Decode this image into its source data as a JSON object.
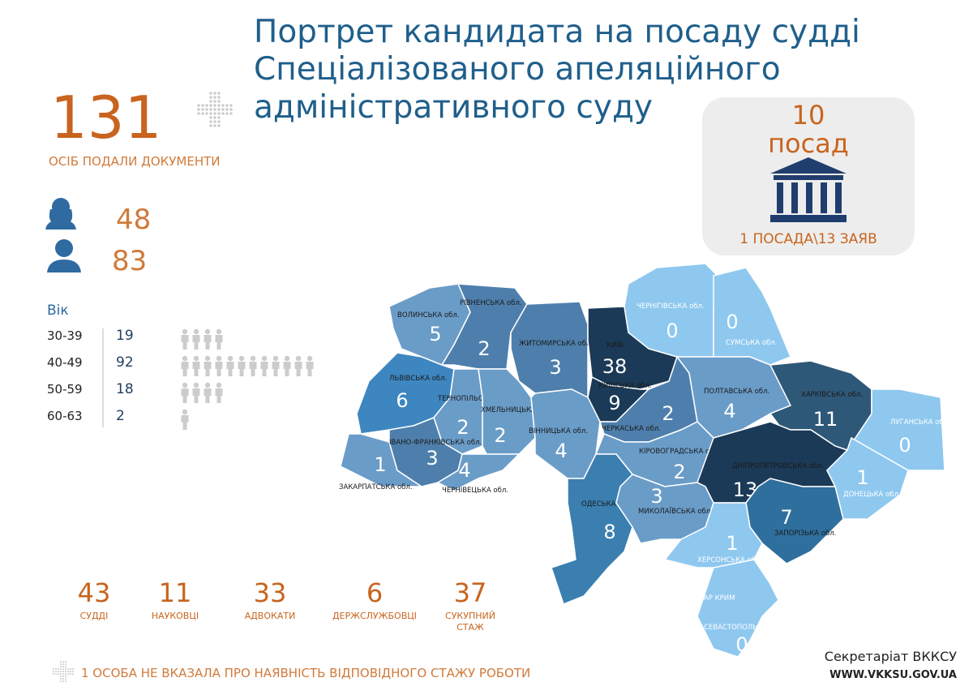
{
  "header": {
    "title": [
      "Портрет кандидата на посаду судді",
      "Спеціалізованого апеляційного",
      "адміністративного суду"
    ]
  },
  "applicants": {
    "total": "131",
    "label": "ОСІБ ПОДАЛИ ДОКУМЕНТИ"
  },
  "gender": {
    "female": "48",
    "male": "83"
  },
  "age": {
    "title": "Вік",
    "rows": [
      [
        "30-39",
        "19"
      ],
      [
        "40-49",
        "92"
      ],
      [
        "50-59",
        "18"
      ],
      [
        "60-63",
        "2"
      ]
    ]
  },
  "positions": {
    "count": "10",
    "unit": "посад",
    "ratio": "1 ПОСАДА\\13 ЗАЯВ"
  },
  "experience": [
    {
      "value": "43",
      "label": [
        "СУДДІ"
      ]
    },
    {
      "value": "11",
      "label": [
        "НАУКОВЦІ"
      ]
    },
    {
      "value": "33",
      "label": [
        "АДВОКАТИ"
      ]
    },
    {
      "value": "6",
      "label": [
        "ДЕРЖСЛУЖБОВЦІ"
      ]
    },
    {
      "value": "37",
      "label": [
        "СУКУПНИЙ",
        "СТАЖ"
      ]
    }
  ],
  "note": "1 ОСОБА НЕ ВКАЗАЛА ПРО НАЯВНІСТЬ ВІДПОВІДНОГО СТАЖУ РОБОТИ",
  "footer": {
    "org": "Секретаріат ВККСУ",
    "url": "WWW.VKKSU.GOV.UA"
  },
  "regions": [
    {
      "name": "ВОЛИНСЬКА обл.",
      "value": "5",
      "color": "#6a9cc8"
    },
    {
      "name": "РІВНЕНСЬКА обл.",
      "value": "2",
      "color": "#4e7fac"
    },
    {
      "name": "ЖИТОМИРСЬКА обл.",
      "value": "3",
      "color": "#4e7fac"
    },
    {
      "name": "КИЇВ",
      "value": "38",
      "color": "#1b3a57"
    },
    {
      "name": "КИЇВСЬКА обл.",
      "value": "9",
      "color": "#1b3a57"
    },
    {
      "name": "ЧЕРНІГІВСЬКА обл.",
      "value": "0",
      "color": "#8ec8ef"
    },
    {
      "name": "СУМСЬКА обл.",
      "value": "0",
      "color": "#8ec8ef"
    },
    {
      "name": "ЛЬВІВСЬКА обл.",
      "value": "6",
      "color": "#3d86c0"
    },
    {
      "name": "ТЕРНОПІЛЬСЬКА обл.",
      "value": "2",
      "color": "#6a9cc8"
    },
    {
      "name": "ХМЕЛЬНИЦЬКА обл.",
      "value": "2",
      "color": "#6a9cc8"
    },
    {
      "name": "ВІННИЦЬКА обл.",
      "value": "4",
      "color": "#6a9cc8"
    },
    {
      "name": "ЧЕРКАСЬКА обл.",
      "value": "2",
      "color": "#4e7fac"
    },
    {
      "name": "ПОЛТАВСЬКА обл.",
      "value": "4",
      "color": "#6a9cc8"
    },
    {
      "name": "ХАРКІВСЬКА обл.",
      "value": "11",
      "color": "#2e5878"
    },
    {
      "name": "ЛУГАНСЬКА обл.",
      "value": "0",
      "color": "#8ec8ef"
    },
    {
      "name": "ЗАКАРПАТСЬКА обл.",
      "value": "1",
      "color": "#6a9cc8"
    },
    {
      "name": "ІВАНО-ФРАНКІВСЬКА обл.",
      "value": "3",
      "color": "#4e7fac"
    },
    {
      "name": "ЧЕРНІВЕЦЬКА обл.",
      "value": "4",
      "color": "#6a9cc8"
    },
    {
      "name": "КІРОВОГРАДСЬКА обл.",
      "value": "2",
      "color": "#6a9cc8"
    },
    {
      "name": "ДНІПРОПЕТРОВСЬКА обл.",
      "value": "13",
      "color": "#1b3a57"
    },
    {
      "name": "ДОНЕЦЬКА обл.",
      "value": "1",
      "color": "#8ec8ef"
    },
    {
      "name": "ОДЕСЬКА обл.",
      "value": "8",
      "color": "#3a7fb0"
    },
    {
      "name": "МИКОЛАЇВСЬКА обл.",
      "value": "3",
      "color": "#6a9cc8"
    },
    {
      "name": "ЗАПОРІЗЬКА обл.",
      "value": "7",
      "color": "#2e6f9e"
    },
    {
      "name": "ХЕРСОНСЬКА обл.",
      "value": "1",
      "color": "#8ec8ef"
    },
    {
      "name": "АР КРИМ",
      "color": "#8ec8ef"
    },
    {
      "name": "СЕВАСТОПОЛЬ",
      "value": "0",
      "color": "#8ec8ef"
    }
  ]
}
